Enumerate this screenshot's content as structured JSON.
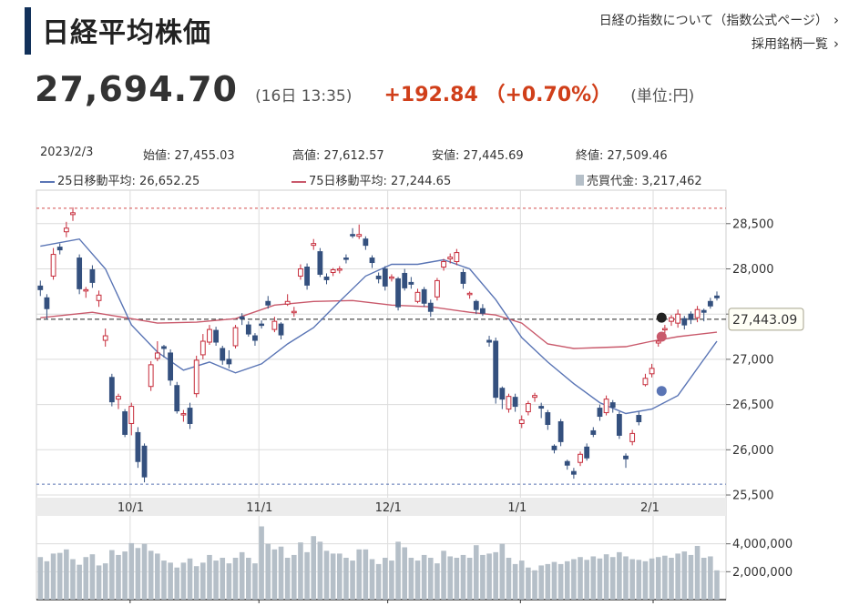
{
  "header": {
    "title": "日経平均株価",
    "link_index_info": "日経の指数について（指数公式ページ）",
    "link_constituents": "採用銘柄一覧",
    "chevron": "›"
  },
  "quote": {
    "price": "27,694.70",
    "time": "(16日 13:35)",
    "change": "+192.84 （+0.70%）",
    "unit": "(単位:円)"
  },
  "info": {
    "date": "2023/2/3",
    "open": "始値: 27,455.03",
    "high": "高値: 27,612.57",
    "low": "安値: 27,445.69",
    "close": "終値: 27,509.46",
    "ma25": "25日移動平均: 26,652.25",
    "ma75": "75日移動平均: 27,244.65",
    "volume": "売買代金: 3,217,462"
  },
  "colors": {
    "up": "#c62b3a",
    "down": "#34507e",
    "ma25": "#5a75b5",
    "ma75": "#c9596b",
    "volume": "#b5bfc8",
    "title_bar": "#12315a",
    "change": "#d03f1a"
  },
  "chart_data": {
    "type": "candlestick",
    "price_ticks": [
      "28,500",
      "28,000",
      "27,500",
      "27,000",
      "26,500",
      "26,000",
      "25,500"
    ],
    "price_tick_values": [
      28500,
      28000,
      27500,
      27000,
      26500,
      26000,
      25500
    ],
    "ylim": [
      25470,
      28870
    ],
    "x_ticks": [
      "10/1",
      "11/1",
      "12/1",
      "1/1",
      "2/1"
    ],
    "volume_ticks": [
      "4,000,000",
      "2,000,000"
    ],
    "volume_tick_values": [
      4000000,
      2000000
    ],
    "volume_ylim": [
      0,
      6000000
    ],
    "current_label": "27,443.09",
    "current_value": 27443.09,
    "high_line": 28670,
    "low_line": 25620,
    "candles_count": 105,
    "candles": [
      [
        27810,
        27770,
        27870,
        27700
      ],
      [
        27680,
        27560,
        27720,
        27440
      ],
      [
        27920,
        28160,
        28230,
        27880
      ],
      [
        28240,
        28210,
        28280,
        28160
      ],
      [
        28410,
        28450,
        28520,
        28350
      ],
      [
        28600,
        28620,
        28680,
        28530
      ],
      [
        28120,
        27780,
        28160,
        27720
      ],
      [
        27760,
        27770,
        27800,
        27680
      ],
      [
        27990,
        27850,
        28040,
        27790
      ],
      [
        27650,
        27710,
        27760,
        27580
      ],
      [
        27210,
        27260,
        27340,
        27140
      ],
      [
        26800,
        26530,
        26840,
        26480
      ],
      [
        26560,
        26590,
        26620,
        26450
      ],
      [
        26420,
        26170,
        26450,
        26140
      ],
      [
        26290,
        26480,
        26520,
        26160
      ],
      [
        26190,
        25870,
        26250,
        25800
      ],
      [
        26040,
        25700,
        26070,
        25640
      ],
      [
        26700,
        26940,
        26980,
        26650
      ],
      [
        27010,
        27070,
        27200,
        26980
      ],
      [
        27140,
        27120,
        27160,
        27020
      ],
      [
        27070,
        26770,
        27110,
        26710
      ],
      [
        26710,
        26430,
        26750,
        26400
      ],
      [
        26390,
        26400,
        26440,
        26310
      ],
      [
        26460,
        26290,
        26520,
        26230
      ],
      [
        26620,
        26990,
        27040,
        26580
      ],
      [
        27050,
        27200,
        27280,
        27000
      ],
      [
        27190,
        27330,
        27380,
        27160
      ],
      [
        27320,
        27190,
        27360,
        27150
      ],
      [
        27120,
        26990,
        27150,
        26940
      ],
      [
        27000,
        26950,
        27100,
        26900
      ],
      [
        27150,
        27350,
        27380,
        27120
      ],
      [
        27470,
        27450,
        27510,
        27380
      ],
      [
        27380,
        27280,
        27420,
        27250
      ],
      [
        27260,
        27210,
        27290,
        27150
      ],
      [
        27390,
        27380,
        27430,
        27340
      ],
      [
        27640,
        27600,
        27700,
        27560
      ],
      [
        27330,
        27420,
        27470,
        27300
      ],
      [
        27390,
        27270,
        27410,
        27220
      ],
      [
        27610,
        27640,
        27720,
        27590
      ],
      [
        27520,
        27530,
        27580,
        27470
      ],
      [
        27920,
        28000,
        28050,
        27880
      ],
      [
        28020,
        27820,
        28060,
        27770
      ],
      [
        28260,
        28280,
        28330,
        28210
      ],
      [
        28190,
        27940,
        28230,
        27910
      ],
      [
        27910,
        27880,
        27950,
        27830
      ],
      [
        27960,
        27990,
        28010,
        27920
      ],
      [
        27990,
        28000,
        28030,
        27950
      ],
      [
        28120,
        28110,
        28160,
        28060
      ],
      [
        28380,
        28370,
        28450,
        28340
      ],
      [
        28360,
        28380,
        28490,
        28330
      ],
      [
        28330,
        28260,
        28360,
        28210
      ],
      [
        28120,
        28070,
        28150,
        28010
      ],
      [
        27920,
        27890,
        27960,
        27840
      ],
      [
        28000,
        27810,
        28030,
        27760
      ],
      [
        27900,
        27910,
        27940,
        27860
      ],
      [
        27890,
        27580,
        27910,
        27540
      ],
      [
        27950,
        27790,
        28000,
        27760
      ],
      [
        27850,
        27830,
        27910,
        27780
      ],
      [
        27640,
        27740,
        27780,
        27620
      ],
      [
        27770,
        27620,
        27800,
        27580
      ],
      [
        27620,
        27530,
        27660,
        27470
      ],
      [
        27690,
        27870,
        27900,
        27650
      ],
      [
        28020,
        28080,
        28110,
        27980
      ],
      [
        28110,
        28130,
        28170,
        28060
      ],
      [
        28080,
        28180,
        28220,
        28040
      ],
      [
        27960,
        27840,
        28000,
        27780
      ],
      [
        27720,
        27730,
        27750,
        27670
      ],
      [
        27640,
        27550,
        27660,
        27500
      ],
      [
        27560,
        27510,
        27610,
        27480
      ],
      [
        27210,
        27190,
        27260,
        27140
      ],
      [
        27200,
        26580,
        27240,
        26510
      ],
      [
        26680,
        26560,
        26700,
        26450
      ],
      [
        26450,
        26590,
        26620,
        26410
      ],
      [
        26580,
        26480,
        26620,
        26420
      ],
      [
        26290,
        26330,
        26380,
        26240
      ],
      [
        26420,
        26510,
        26540,
        26380
      ],
      [
        26580,
        26600,
        26630,
        26530
      ],
      [
        26480,
        26460,
        26520,
        26350
      ],
      [
        26410,
        26280,
        26440,
        26220
      ],
      [
        26040,
        26000,
        26060,
        25960
      ],
      [
        26310,
        26090,
        26340,
        26040
      ],
      [
        25870,
        25830,
        25890,
        25780
      ],
      [
        25760,
        25730,
        25800,
        25680
      ],
      [
        25860,
        25950,
        25980,
        25820
      ],
      [
        26030,
        25910,
        26070,
        25880
      ],
      [
        26210,
        26170,
        26250,
        26140
      ],
      [
        26460,
        26370,
        26500,
        26320
      ],
      [
        26410,
        26560,
        26600,
        26380
      ],
      [
        26520,
        26470,
        26550,
        26410
      ],
      [
        26390,
        26160,
        26420,
        26120
      ],
      [
        25930,
        25900,
        25960,
        25800
      ],
      [
        26090,
        26180,
        26220,
        26050
      ],
      [
        26380,
        26310,
        26420,
        26270
      ],
      [
        26720,
        26790,
        26840,
        26700
      ],
      [
        26840,
        26900,
        26950,
        26800
      ],
      [
        27180,
        27200,
        27260,
        27140
      ],
      [
        27330,
        27340,
        27380,
        27290
      ],
      [
        27420,
        27460,
        27490,
        27370
      ],
      [
        27400,
        27500,
        27550,
        27350
      ],
      [
        27450,
        27380,
        27480,
        27330
      ],
      [
        27500,
        27440,
        27530,
        27390
      ],
      [
        27460,
        27550,
        27590,
        27410
      ],
      [
        27540,
        27520,
        27560,
        27420
      ],
      [
        27640,
        27590,
        27680,
        27560
      ],
      [
        27700,
        27680,
        27750,
        27650
      ]
    ],
    "ma25": [
      [
        0,
        28250
      ],
      [
        6,
        28330
      ],
      [
        10,
        28000
      ],
      [
        14,
        27380
      ],
      [
        18,
        27080
      ],
      [
        22,
        26880
      ],
      [
        26,
        26970
      ],
      [
        30,
        26850
      ],
      [
        34,
        26950
      ],
      [
        38,
        27170
      ],
      [
        42,
        27350
      ],
      [
        46,
        27640
      ],
      [
        50,
        27920
      ],
      [
        54,
        28050
      ],
      [
        58,
        28050
      ],
      [
        62,
        28100
      ],
      [
        66,
        28000
      ],
      [
        70,
        27660
      ],
      [
        74,
        27240
      ],
      [
        78,
        26970
      ],
      [
        82,
        26730
      ],
      [
        86,
        26520
      ],
      [
        90,
        26400
      ],
      [
        94,
        26450
      ],
      [
        98,
        26600
      ],
      [
        102,
        27000
      ],
      [
        104,
        27200
      ]
    ],
    "ma75": [
      [
        0,
        27460
      ],
      [
        8,
        27520
      ],
      [
        14,
        27450
      ],
      [
        18,
        27400
      ],
      [
        24,
        27410
      ],
      [
        30,
        27450
      ],
      [
        36,
        27600
      ],
      [
        42,
        27640
      ],
      [
        48,
        27650
      ],
      [
        54,
        27600
      ],
      [
        60,
        27580
      ],
      [
        66,
        27520
      ],
      [
        70,
        27490
      ],
      [
        74,
        27400
      ],
      [
        78,
        27170
      ],
      [
        82,
        27120
      ],
      [
        86,
        27130
      ],
      [
        90,
        27140
      ],
      [
        94,
        27200
      ],
      [
        98,
        27250
      ],
      [
        104,
        27300
      ]
    ],
    "volumes": [
      3.05,
      2.75,
      3.3,
      3.35,
      3.6,
      2.9,
      2.5,
      3.05,
      3.25,
      2.45,
      2.6,
      3.55,
      3.2,
      3.45,
      4.05,
      3.7,
      4.0,
      3.5,
      3.3,
      2.8,
      2.65,
      2.3,
      2.65,
      2.95,
      2.4,
      2.65,
      3.2,
      2.8,
      3.0,
      2.6,
      3.0,
      3.4,
      3.0,
      2.6,
      5.25,
      4.0,
      3.6,
      3.8,
      3.0,
      3.2,
      4.1,
      3.4,
      4.55,
      4.15,
      3.5,
      3.3,
      3.3,
      3.0,
      2.8,
      3.6,
      3.6,
      2.9,
      2.55,
      3.0,
      2.8,
      4.15,
      3.75,
      3.0,
      2.8,
      3.2,
      3.0,
      2.6,
      3.5,
      3.1,
      3.0,
      3.2,
      3.0,
      3.9,
      3.2,
      3.3,
      3.4,
      4.0,
      3.0,
      2.55,
      2.8,
      2.3,
      2.1,
      2.45,
      2.55,
      2.7,
      2.55,
      2.75,
      2.9,
      3.05,
      2.85,
      3.1,
      2.95,
      3.25,
      3.05,
      3.4,
      3.1,
      2.9,
      2.85,
      2.75,
      2.95,
      3.05,
      3.15,
      3.0,
      3.3,
      3.45,
      3.2,
      3.85,
      3.0,
      3.1,
      2.1
    ]
  }
}
